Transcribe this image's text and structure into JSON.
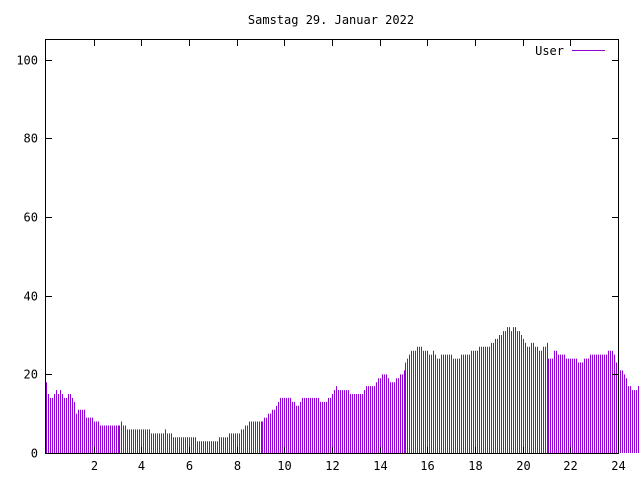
{
  "chart_data": {
    "type": "bar",
    "title": "Samstag 29. Januar 2022",
    "xlabel": "",
    "ylabel": "",
    "xlim": [
      0,
      24
    ],
    "ylim": [
      0,
      105
    ],
    "x_ticks": [
      2,
      4,
      6,
      8,
      10,
      12,
      14,
      16,
      18,
      20,
      22,
      24
    ],
    "y_ticks": [
      0,
      20,
      40,
      60,
      80,
      100
    ],
    "grid": false,
    "legend": "top-right",
    "color": "#9400d3",
    "series": [
      {
        "name": "User",
        "interval_minutes": 5,
        "values": [
          18,
          15,
          14,
          14,
          15,
          16,
          15,
          16,
          15,
          14,
          14,
          15,
          15,
          14,
          13,
          10,
          11,
          11,
          11,
          11,
          9,
          9,
          9,
          9,
          8,
          8,
          8,
          7,
          7,
          7,
          7,
          7,
          7,
          7,
          7,
          7,
          7,
          7,
          8,
          7,
          7,
          6,
          6,
          6,
          6,
          6,
          6,
          6,
          6,
          6,
          6,
          6,
          6,
          5,
          5,
          5,
          5,
          5,
          5,
          5,
          6,
          5,
          5,
          5,
          4,
          4,
          4,
          4,
          4,
          4,
          4,
          4,
          4,
          4,
          4,
          4,
          3,
          3,
          3,
          3,
          3,
          3,
          3,
          3,
          3,
          3,
          3,
          4,
          4,
          4,
          4,
          4,
          5,
          5,
          5,
          5,
          5,
          5,
          6,
          6,
          7,
          7,
          8,
          8,
          8,
          8,
          8,
          8,
          8,
          8,
          9,
          9,
          10,
          10,
          11,
          11,
          12,
          13,
          14,
          14,
          14,
          14,
          14,
          14,
          13,
          13,
          12,
          12,
          13,
          14,
          14,
          14,
          14,
          14,
          14,
          14,
          14,
          14,
          13,
          13,
          13,
          13,
          14,
          14,
          15,
          16,
          17,
          16,
          16,
          16,
          16,
          16,
          16,
          15,
          15,
          15,
          15,
          15,
          15,
          15,
          16,
          17,
          17,
          17,
          17,
          17,
          18,
          19,
          19,
          20,
          20,
          20,
          19,
          18,
          18,
          18,
          19,
          19,
          20,
          20,
          21,
          23,
          24,
          25,
          26,
          26,
          26,
          27,
          27,
          27,
          26,
          26,
          26,
          25,
          25,
          26,
          25,
          24,
          24,
          25,
          25,
          25,
          25,
          25,
          25,
          24,
          24,
          24,
          24,
          25,
          25,
          25,
          25,
          25,
          26,
          26,
          26,
          26,
          27,
          27,
          27,
          27,
          27,
          27,
          28,
          28,
          29,
          29,
          30,
          30,
          31,
          31,
          32,
          32,
          31,
          32,
          32,
          31,
          31,
          30,
          29,
          28,
          27,
          27,
          28,
          28,
          27,
          27,
          26,
          26,
          27,
          27,
          28,
          24,
          24,
          24,
          26,
          26,
          25,
          25,
          25,
          25,
          24,
          24,
          24,
          24,
          24,
          24,
          23,
          23,
          23,
          24,
          24,
          24,
          25,
          25,
          25,
          25,
          25,
          25,
          25,
          25,
          25,
          26,
          26,
          26,
          25,
          23,
          21,
          21,
          21,
          20,
          19,
          17,
          17,
          16,
          16,
          16,
          17,
          16
        ]
      }
    ]
  }
}
